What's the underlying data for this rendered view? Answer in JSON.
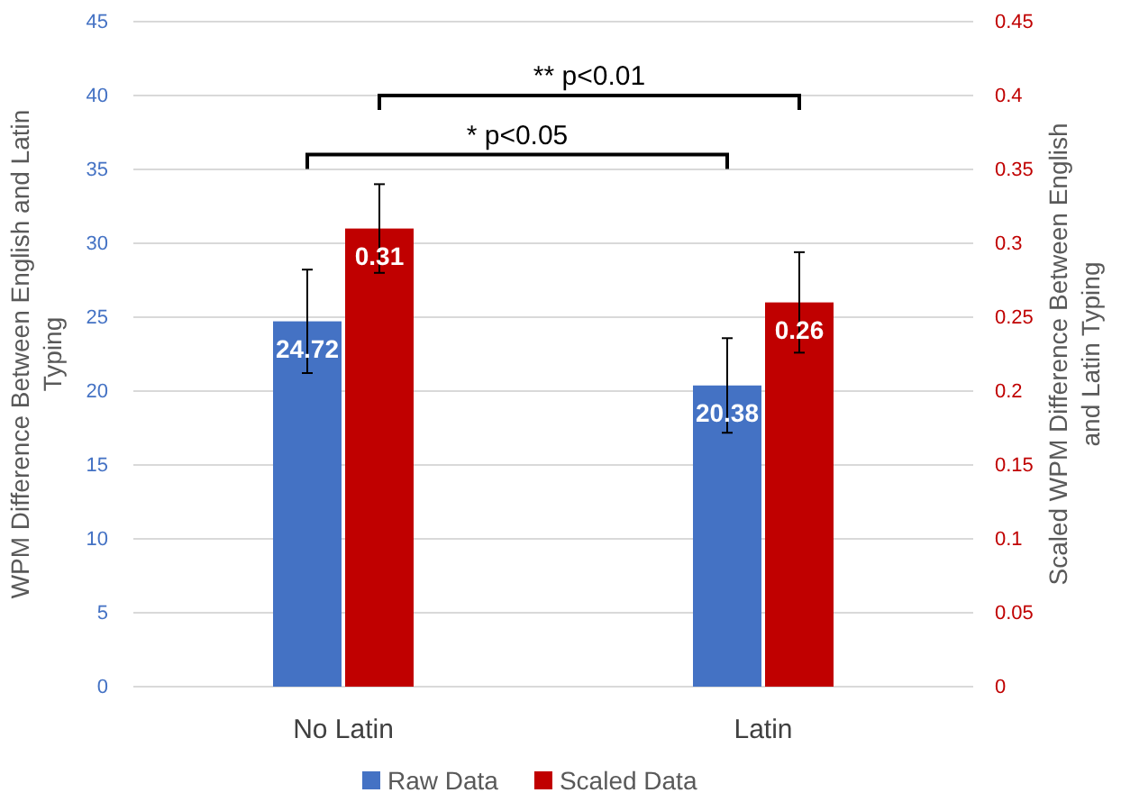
{
  "chart_data": {
    "type": "bar",
    "categories": [
      "No Latin",
      "Latin"
    ],
    "ylabel": "WPM Difference Between English and Latin Typing",
    "y2label": "Scaled WPM Difference Between English and Latin Typing",
    "ylim": [
      0,
      45
    ],
    "yticks": [
      0,
      5,
      10,
      15,
      20,
      25,
      30,
      35,
      40,
      45
    ],
    "y2lim": [
      0,
      0.45
    ],
    "y2ticks": [
      0,
      0.05,
      0.1,
      0.15,
      0.2,
      0.25,
      0.3,
      0.35,
      0.4,
      0.45
    ],
    "series": [
      {
        "name": "Raw Data",
        "color": "#4472c4",
        "values": [
          24.72,
          20.38
        ],
        "errors": [
          3.5,
          3.2
        ]
      },
      {
        "name": "Scaled Data",
        "color": "#c00000",
        "values": [
          0.31,
          0.26
        ],
        "errors": [
          0.03,
          0.034
        ],
        "axis": "y2"
      }
    ],
    "data_labels": true,
    "grid": "y",
    "legend": "bottom",
    "annotations": [
      "** p<0.01",
      "* p<0.05"
    ]
  }
}
